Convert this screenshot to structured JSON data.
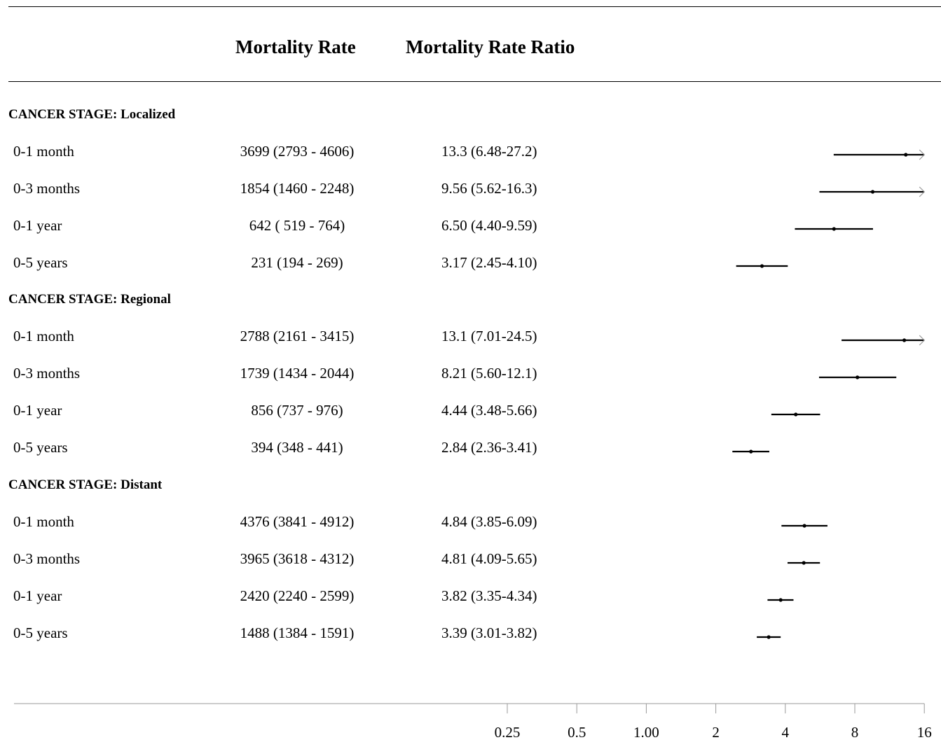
{
  "header": {
    "rate_title": "Mortality Rate",
    "ratio_title": "Mortality Rate Ratio"
  },
  "sections": [
    {
      "title": "CANCER STAGE: Localized",
      "rows": [
        {
          "label": "0-1 month",
          "rate": "3699 (2793 - 4606)",
          "ratio": "13.3 (6.48-27.2)"
        },
        {
          "label": "0-3 months",
          "rate": "1854 (1460 - 2248)",
          "ratio": "9.56 (5.62-16.3)"
        },
        {
          "label": "0-1 year",
          "rate": "642 ( 519 - 764)",
          "ratio": "6.50 (4.40-9.59)"
        },
        {
          "label": "0-5 years",
          "rate": "231 (194 - 269)",
          "ratio": "3.17 (2.45-4.10)"
        }
      ]
    },
    {
      "title": "CANCER STAGE: Regional",
      "rows": [
        {
          "label": "0-1 month",
          "rate": "2788 (2161 - 3415)",
          "ratio": "13.1 (7.01-24.5)"
        },
        {
          "label": "0-3 months",
          "rate": "1739 (1434 - 2044)",
          "ratio": "8.21 (5.60-12.1)"
        },
        {
          "label": "0-1 year",
          "rate": "856 (737 - 976)",
          "ratio": "4.44 (3.48-5.66)"
        },
        {
          "label": "0-5 years",
          "rate": "394 (348 - 441)",
          "ratio": "2.84 (2.36-3.41)"
        }
      ]
    },
    {
      "title": "CANCER STAGE: Distant",
      "rows": [
        {
          "label": "0-1 month",
          "rate": "4376 (3841 - 4912)",
          "ratio": "4.84 (3.85-6.09)"
        },
        {
          "label": "0-3 months",
          "rate": "3965 (3618 - 4312)",
          "ratio": "4.81 (4.09-5.65)"
        },
        {
          "label": "0-1 year",
          "rate": "2420 (2240 - 2599)",
          "ratio": "3.82 (3.35-4.34)"
        },
        {
          "label": "0-5 years",
          "rate": "1488 (1384 - 1591)",
          "ratio": "3.39 (3.01-3.82)"
        }
      ]
    }
  ],
  "chart_data": {
    "type": "forest",
    "scale": "log2",
    "xlim": [
      0.25,
      16
    ],
    "x_ticks": [
      "0.25",
      "0.5",
      "1.00",
      "2",
      "4",
      "8",
      "16"
    ],
    "x_tick_values": [
      0.25,
      0.5,
      1,
      2,
      4,
      8,
      16
    ],
    "series": [
      {
        "group": "CANCER STAGE: Localized",
        "label": "0-1 month",
        "estimate": 13.3,
        "lower": 6.48,
        "upper": 27.2,
        "clipped": true
      },
      {
        "group": "CANCER STAGE: Localized",
        "label": "0-3 months",
        "estimate": 9.56,
        "lower": 5.62,
        "upper": 16.3,
        "clipped": true
      },
      {
        "group": "CANCER STAGE: Localized",
        "label": "0-1 year",
        "estimate": 6.5,
        "lower": 4.4,
        "upper": 9.59
      },
      {
        "group": "CANCER STAGE: Localized",
        "label": "0-5 years",
        "estimate": 3.17,
        "lower": 2.45,
        "upper": 4.1
      },
      {
        "group": "CANCER STAGE: Regional",
        "label": "0-1 month",
        "estimate": 13.1,
        "lower": 7.01,
        "upper": 24.5,
        "clipped": true
      },
      {
        "group": "CANCER STAGE: Regional",
        "label": "0-3 months",
        "estimate": 8.21,
        "lower": 5.6,
        "upper": 12.1
      },
      {
        "group": "CANCER STAGE: Regional",
        "label": "0-1 year",
        "estimate": 4.44,
        "lower": 3.48,
        "upper": 5.66
      },
      {
        "group": "CANCER STAGE: Regional",
        "label": "0-5 years",
        "estimate": 2.84,
        "lower": 2.36,
        "upper": 3.41
      },
      {
        "group": "CANCER STAGE: Distant",
        "label": "0-1 month",
        "estimate": 4.84,
        "lower": 3.85,
        "upper": 6.09
      },
      {
        "group": "CANCER STAGE: Distant",
        "label": "0-3 months",
        "estimate": 4.81,
        "lower": 4.09,
        "upper": 5.65
      },
      {
        "group": "CANCER STAGE: Distant",
        "label": "0-1 year",
        "estimate": 3.82,
        "lower": 3.35,
        "upper": 4.34
      },
      {
        "group": "CANCER STAGE: Distant",
        "label": "0-5 years",
        "estimate": 3.39,
        "lower": 3.01,
        "upper": 3.82
      }
    ],
    "colors": {
      "line": "#000000",
      "axis": "#999999",
      "clip_arrow": "#999999"
    }
  }
}
